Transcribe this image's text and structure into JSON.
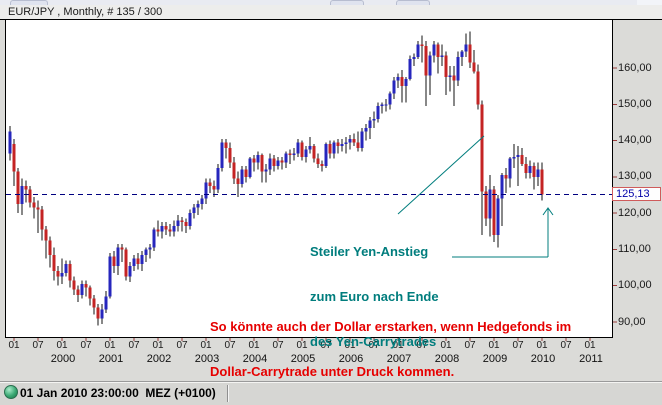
{
  "window": {
    "title": "EUR/JPY , Monthly, # 135 / 300"
  },
  "price_marker": {
    "label": "125,13",
    "value": 125.13
  },
  "annotations": {
    "teal": {
      "color": "#007d7d",
      "lines": [
        "Steiler Yen-Anstieg",
        "zum Euro nach Ende",
        "des Yen-Carrytrades"
      ]
    },
    "red": {
      "color": "#e60000",
      "lines": [
        "So könnte auch der Dollar erstarken, wenn Hedgefonds im",
        "Dollar-Carrytrade unter Druck kommen."
      ]
    }
  },
  "status_bar": {
    "timestamp": "01 Jan 2010 23:00:00  MEZ (+0100)"
  },
  "colors": {
    "up_candle": "#2626bd",
    "down_candle": "#c42424",
    "wick": "#111111",
    "dashed_line": "#000080",
    "tick": "#9a3c3c",
    "teal": "#007d7d",
    "price_text": "#0000a8",
    "price_box_border": "#cf5b5b"
  },
  "chart_data": {
    "type": "candlestick",
    "symbol": "EUR/JPY",
    "timeframe": "Monthly",
    "bars_label": "# 135 / 300",
    "last_price": 125.13,
    "grid": false,
    "y_axis": {
      "side": "right",
      "labels": [
        "160,00",
        "150,00",
        "140,00",
        "130,00",
        "120,00",
        "110,00",
        "100,00",
        "90,00"
      ],
      "values": [
        160,
        150,
        140,
        130,
        120,
        110,
        100,
        90
      ],
      "range_shown": [
        86.5,
        173
      ]
    },
    "x_axis": {
      "month_tick_labels": {
        "jan": "01",
        "jul": "07"
      },
      "first_label_year": 1999,
      "years": [
        "2000",
        "2001",
        "2002",
        "2003",
        "2004",
        "2005",
        "2006",
        "2007",
        "2008",
        "2009",
        "2010",
        "2011"
      ]
    },
    "candles_format": [
      "month",
      "open",
      "high",
      "low",
      "close"
    ],
    "candles": [
      [
        "1998-12",
        136.5,
        144.0,
        134.5,
        142.5
      ],
      [
        "1999-01",
        139.0,
        140.5,
        127.5,
        131.5
      ],
      [
        "1999-02",
        131.5,
        132.5,
        120.0,
        122.5
      ],
      [
        "1999-03",
        122.5,
        129.5,
        119.5,
        127.5
      ],
      [
        "1999-04",
        127.5,
        129.0,
        123.0,
        126.5
      ],
      [
        "1999-05",
        126.5,
        127.5,
        121.5,
        123.0
      ],
      [
        "1999-06",
        123.0,
        124.5,
        118.5,
        121.5
      ],
      [
        "1999-07",
        121.5,
        123.5,
        114.5,
        121.0
      ],
      [
        "1999-08",
        121.0,
        122.0,
        112.5,
        115.5
      ],
      [
        "1999-09",
        115.5,
        116.5,
        107.5,
        112.5
      ],
      [
        "1999-10",
        112.5,
        113.5,
        105.0,
        108.5
      ],
      [
        "1999-11",
        108.5,
        110.5,
        101.5,
        104.0
      ],
      [
        "1999-12",
        104.0,
        105.5,
        100.0,
        102.5
      ],
      [
        "2000-01",
        102.5,
        107.5,
        100.5,
        103.5
      ],
      [
        "2000-02",
        103.5,
        107.0,
        102.5,
        106.0
      ],
      [
        "2000-03",
        106.0,
        107.0,
        99.5,
        101.5
      ],
      [
        "2000-04",
        101.5,
        102.5,
        97.5,
        99.0
      ],
      [
        "2000-05",
        99.0,
        100.0,
        95.5,
        97.5
      ],
      [
        "2000-06",
        97.5,
        101.5,
        96.5,
        100.5
      ],
      [
        "2000-07",
        100.5,
        101.5,
        97.0,
        99.5
      ],
      [
        "2000-08",
        99.5,
        100.0,
        94.5,
        96.5
      ],
      [
        "2000-09",
        96.5,
        97.5,
        92.0,
        94.0
      ],
      [
        "2000-10",
        94.0,
        95.0,
        89.0,
        91.0
      ],
      [
        "2000-11",
        91.0,
        95.0,
        89.5,
        93.5
      ],
      [
        "2000-12",
        93.5,
        98.5,
        92.5,
        97.0
      ],
      [
        "2001-01",
        97.0,
        109.0,
        96.5,
        108.0
      ],
      [
        "2001-02",
        108.0,
        109.5,
        103.5,
        105.5
      ],
      [
        "2001-03",
        105.5,
        111.5,
        103.0,
        110.5
      ],
      [
        "2001-04",
        110.5,
        111.5,
        106.5,
        110.0
      ],
      [
        "2001-05",
        110.0,
        110.5,
        101.5,
        102.5
      ],
      [
        "2001-06",
        102.5,
        106.5,
        101.0,
        105.5
      ],
      [
        "2001-07",
        105.5,
        108.5,
        104.0,
        107.5
      ],
      [
        "2001-08",
        107.5,
        109.0,
        104.5,
        106.0
      ],
      [
        "2001-09",
        106.0,
        109.5,
        104.0,
        108.5
      ],
      [
        "2001-10",
        108.5,
        110.5,
        106.5,
        110.0
      ],
      [
        "2001-11",
        110.0,
        111.5,
        107.5,
        110.5
      ],
      [
        "2001-12",
        110.5,
        116.0,
        109.5,
        115.5
      ],
      [
        "2002-01",
        115.5,
        118.0,
        113.5,
        115.0
      ],
      [
        "2002-02",
        115.0,
        117.5,
        113.0,
        116.5
      ],
      [
        "2002-03",
        116.5,
        117.5,
        114.0,
        115.5
      ],
      [
        "2002-04",
        115.5,
        117.0,
        113.5,
        115.0
      ],
      [
        "2002-05",
        115.0,
        118.0,
        113.5,
        116.5
      ],
      [
        "2002-06",
        116.5,
        119.5,
        115.0,
        118.0
      ],
      [
        "2002-07",
        118.0,
        119.0,
        115.0,
        117.5
      ],
      [
        "2002-08",
        117.5,
        118.5,
        114.5,
        116.5
      ],
      [
        "2002-09",
        116.5,
        121.0,
        115.5,
        120.0
      ],
      [
        "2002-10",
        120.0,
        122.5,
        118.5,
        121.5
      ],
      [
        "2002-11",
        121.5,
        123.5,
        119.5,
        122.5
      ],
      [
        "2002-12",
        122.5,
        125.0,
        121.0,
        124.0
      ],
      [
        "2003-01",
        124.0,
        129.5,
        122.5,
        128.5
      ],
      [
        "2003-02",
        128.5,
        129.5,
        125.5,
        127.5
      ],
      [
        "2003-03",
        127.5,
        129.0,
        124.5,
        126.5
      ],
      [
        "2003-04",
        126.5,
        133.5,
        125.5,
        132.5
      ],
      [
        "2003-05",
        132.5,
        140.5,
        131.5,
        139.5
      ],
      [
        "2003-06",
        139.5,
        140.5,
        135.0,
        138.0
      ],
      [
        "2003-07",
        138.0,
        139.5,
        132.5,
        134.0
      ],
      [
        "2003-08",
        134.0,
        135.5,
        128.0,
        129.5
      ],
      [
        "2003-09",
        129.5,
        131.5,
        124.5,
        128.0
      ],
      [
        "2003-10",
        128.0,
        133.0,
        127.0,
        132.0
      ],
      [
        "2003-11",
        132.0,
        133.0,
        128.5,
        130.0
      ],
      [
        "2003-12",
        130.0,
        135.5,
        129.5,
        135.0
      ],
      [
        "2004-01",
        135.0,
        136.0,
        131.5,
        134.0
      ],
      [
        "2004-02",
        134.0,
        137.0,
        132.0,
        136.0
      ],
      [
        "2004-03",
        136.0,
        136.5,
        128.5,
        131.5
      ],
      [
        "2004-04",
        131.5,
        133.5,
        128.5,
        132.0
      ],
      [
        "2004-05",
        132.0,
        136.5,
        130.5,
        135.0
      ],
      [
        "2004-06",
        135.0,
        136.0,
        131.5,
        133.0
      ],
      [
        "2004-07",
        133.0,
        135.5,
        132.0,
        134.5
      ],
      [
        "2004-08",
        134.5,
        135.5,
        132.0,
        134.0
      ],
      [
        "2004-09",
        134.0,
        137.0,
        132.5,
        136.5
      ],
      [
        "2004-10",
        136.5,
        137.5,
        133.5,
        136.0
      ],
      [
        "2004-11",
        136.0,
        138.0,
        134.5,
        136.5
      ],
      [
        "2004-12",
        136.5,
        140.5,
        135.5,
        139.5
      ],
      [
        "2005-01",
        139.5,
        140.0,
        134.5,
        135.5
      ],
      [
        "2005-02",
        135.5,
        138.5,
        134.0,
        137.5
      ],
      [
        "2005-03",
        137.5,
        141.0,
        136.5,
        138.5
      ],
      [
        "2005-04",
        138.5,
        139.0,
        134.0,
        135.0
      ],
      [
        "2005-05",
        135.0,
        136.5,
        132.5,
        133.5
      ],
      [
        "2005-06",
        133.5,
        134.5,
        131.5,
        133.0
      ],
      [
        "2005-07",
        133.0,
        139.5,
        132.5,
        139.0
      ],
      [
        "2005-08",
        139.0,
        140.0,
        135.0,
        136.5
      ],
      [
        "2005-09",
        136.5,
        140.0,
        135.0,
        139.5
      ],
      [
        "2005-10",
        139.5,
        140.5,
        136.5,
        138.5
      ],
      [
        "2005-11",
        138.5,
        140.5,
        137.0,
        139.0
      ],
      [
        "2005-12",
        139.0,
        141.0,
        136.5,
        139.5
      ],
      [
        "2006-01",
        139.5,
        141.5,
        137.5,
        140.5
      ],
      [
        "2006-02",
        140.5,
        142.0,
        138.5,
        139.5
      ],
      [
        "2006-03",
        139.5,
        142.5,
        137.0,
        138.0
      ],
      [
        "2006-04",
        138.0,
        143.5,
        137.0,
        142.5
      ],
      [
        "2006-05",
        142.5,
        144.5,
        140.0,
        143.5
      ],
      [
        "2006-06",
        143.5,
        146.5,
        140.5,
        145.5
      ],
      [
        "2006-07",
        145.5,
        148.0,
        143.5,
        146.0
      ],
      [
        "2006-08",
        146.0,
        150.5,
        145.0,
        149.5
      ],
      [
        "2006-09",
        149.5,
        150.5,
        147.5,
        150.0
      ],
      [
        "2006-10",
        150.0,
        151.5,
        148.0,
        150.0
      ],
      [
        "2006-11",
        150.0,
        153.5,
        148.5,
        153.0
      ],
      [
        "2006-12",
        153.0,
        157.5,
        151.5,
        156.5
      ],
      [
        "2007-01",
        156.5,
        158.5,
        154.5,
        157.5
      ],
      [
        "2007-02",
        157.5,
        159.5,
        150.5,
        155.0
      ],
      [
        "2007-03",
        155.0,
        157.5,
        150.5,
        157.0
      ],
      [
        "2007-04",
        157.0,
        163.5,
        156.5,
        162.5
      ],
      [
        "2007-05",
        162.5,
        164.0,
        160.5,
        163.0
      ],
      [
        "2007-06",
        163.0,
        167.5,
        162.5,
        166.5
      ],
      [
        "2007-07",
        166.5,
        169.0,
        161.5,
        166.0
      ],
      [
        "2007-08",
        166.0,
        167.5,
        149.5,
        158.0
      ],
      [
        "2007-09",
        158.0,
        164.5,
        152.5,
        163.5
      ],
      [
        "2007-10",
        163.5,
        167.5,
        161.5,
        166.5
      ],
      [
        "2007-11",
        166.5,
        167.0,
        158.5,
        163.0
      ],
      [
        "2007-12",
        163.0,
        166.5,
        160.5,
        163.5
      ],
      [
        "2008-01",
        163.5,
        164.5,
        152.5,
        157.5
      ],
      [
        "2008-02",
        157.5,
        160.5,
        153.5,
        158.0
      ],
      [
        "2008-03",
        158.0,
        160.5,
        149.5,
        156.5
      ],
      [
        "2008-04",
        156.5,
        164.5,
        155.0,
        163.0
      ],
      [
        "2008-05",
        163.0,
        165.0,
        160.5,
        164.5
      ],
      [
        "2008-06",
        164.5,
        169.5,
        163.0,
        166.5
      ],
      [
        "2008-07",
        166.5,
        170.0,
        160.0,
        161.5
      ],
      [
        "2008-08",
        161.5,
        165.0,
        158.5,
        159.0
      ],
      [
        "2008-09",
        159.0,
        161.0,
        148.5,
        150.0
      ],
      [
        "2008-10",
        150.0,
        151.0,
        114.0,
        126.0
      ],
      [
        "2008-11",
        126.0,
        127.5,
        116.5,
        118.5
      ],
      [
        "2008-12",
        118.5,
        130.5,
        113.5,
        126.5
      ],
      [
        "2009-01",
        126.5,
        127.5,
        112.0,
        114.0
      ],
      [
        "2009-02",
        114.0,
        125.0,
        110.5,
        124.0
      ],
      [
        "2009-03",
        124.0,
        131.0,
        116.5,
        130.5
      ],
      [
        "2009-04",
        130.5,
        132.5,
        125.5,
        129.5
      ],
      [
        "2009-05",
        129.5,
        135.5,
        127.0,
        135.0
      ],
      [
        "2009-06",
        135.0,
        139.0,
        132.5,
        135.5
      ],
      [
        "2009-07",
        135.5,
        138.5,
        127.5,
        136.0
      ],
      [
        "2009-08",
        136.0,
        138.0,
        133.0,
        133.5
      ],
      [
        "2009-09",
        133.5,
        135.5,
        129.5,
        131.0
      ],
      [
        "2009-10",
        131.0,
        134.5,
        129.5,
        133.0
      ],
      [
        "2009-11",
        133.0,
        134.0,
        126.5,
        130.0
      ],
      [
        "2009-12",
        130.0,
        134.0,
        127.5,
        132.0
      ],
      [
        "2010-01",
        132.0,
        134.0,
        123.5,
        125.13
      ]
    ]
  }
}
